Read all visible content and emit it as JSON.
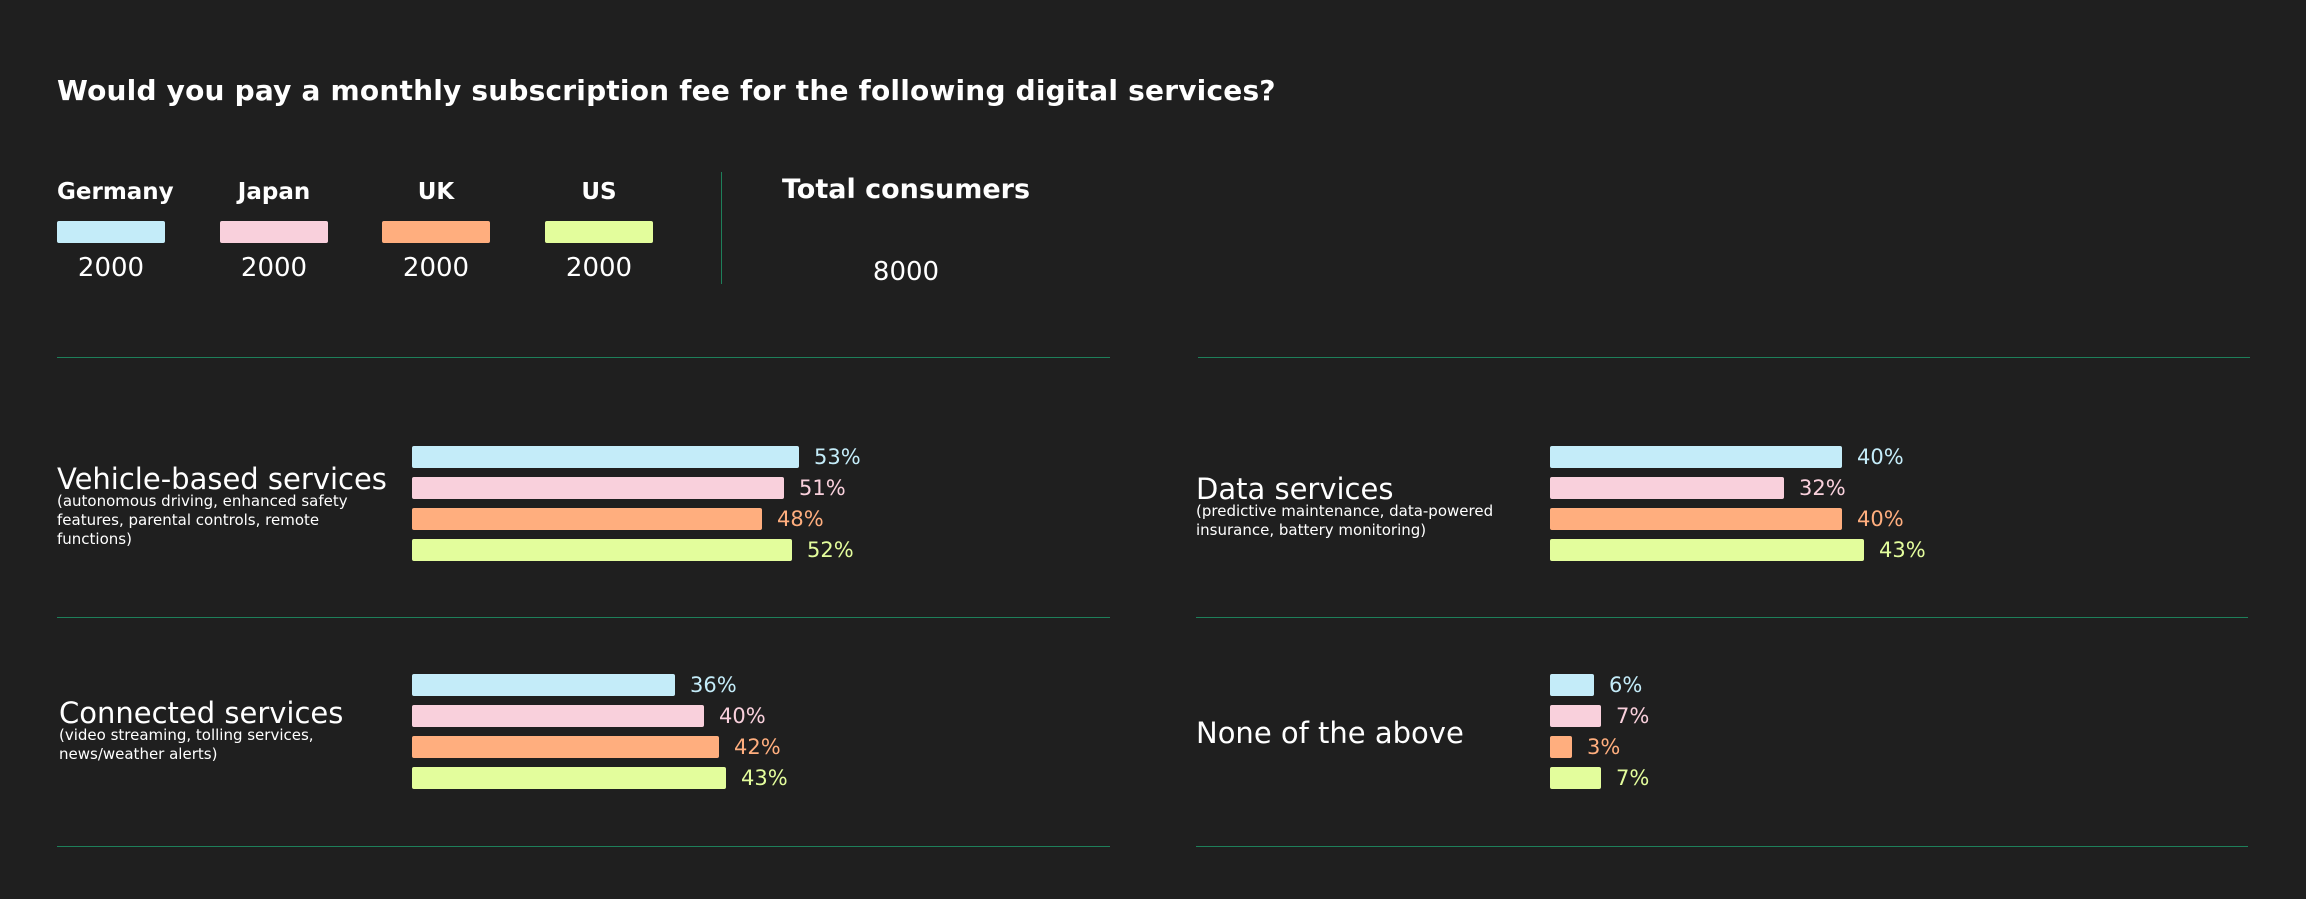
{
  "title": "Would you pay a monthly subscription fee for the following digital services?",
  "legend": [
    {
      "name": "Germany",
      "count": "2000",
      "color": "#c4ecf9"
    },
    {
      "name": "Japan",
      "count": "2000",
      "color": "#f9d0dc"
    },
    {
      "name": "UK",
      "count": "2000",
      "color": "#ffae7e"
    },
    {
      "name": "US",
      "count": "2000",
      "color": "#e3fd9c"
    }
  ],
  "total": {
    "label": "Total consumers",
    "value": "8000"
  },
  "chart_data": {
    "type": "bar",
    "title": "Would you pay a monthly subscription fee for the following digital services?",
    "unit": "%",
    "xlim": [
      0,
      100
    ],
    "legend_position": "top-left",
    "series_names": [
      "Germany",
      "Japan",
      "UK",
      "US"
    ],
    "panels": [
      {
        "title": "Vehicle-based services",
        "subtitle": "(autonomous driving, enhanced safety features, parental controls, remote functions)",
        "values": [
          53,
          51,
          48,
          52
        ],
        "labels": [
          "53%",
          "51%",
          "48%",
          "52%"
        ]
      },
      {
        "title": "Data services",
        "subtitle": "(predictive maintenance, data-powered insurance, battery monitoring)",
        "values": [
          40,
          32,
          40,
          43
        ],
        "labels": [
          "40%",
          "32%",
          "40%",
          "43%"
        ]
      },
      {
        "title": "Connected services",
        "subtitle": "(video streaming, tolling services, news/weather alerts)",
        "values": [
          36,
          40,
          42,
          43
        ],
        "labels": [
          "36%",
          "40%",
          "42%",
          "43%"
        ]
      },
      {
        "title": "None of the above",
        "subtitle": "",
        "values": [
          6,
          7,
          3,
          7
        ],
        "labels": [
          "6%",
          "7%",
          "3%",
          "7%"
        ]
      }
    ]
  }
}
